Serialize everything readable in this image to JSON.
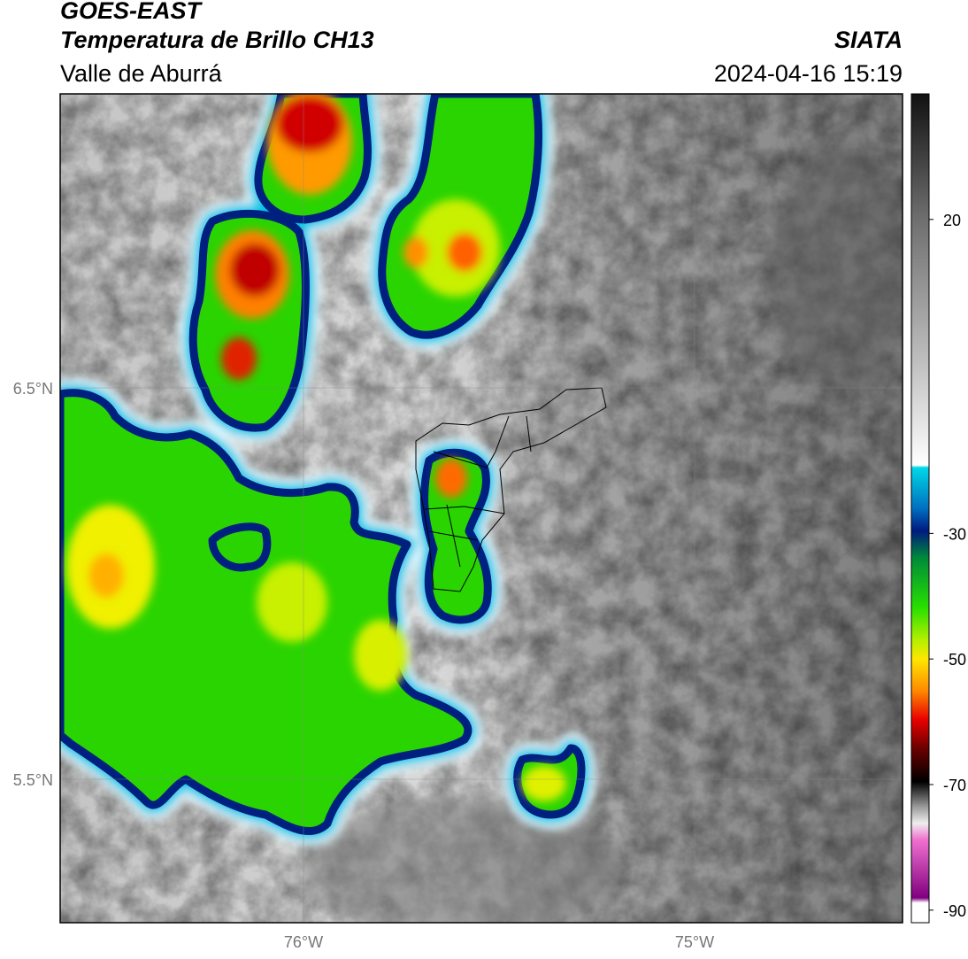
{
  "header": {
    "satellite": "GOES-EAST",
    "product": "Temperatura de Brillo CH13",
    "organization": "SIATA",
    "region": "Valle de Aburrá",
    "datetime": "2024-04-16 15:19"
  },
  "map": {
    "lat_labels": [
      "6.5°N",
      "5.5°N"
    ],
    "lon_labels": [
      "76°W",
      "75°W"
    ]
  },
  "colorbar": {
    "lim": [
      -92,
      40
    ],
    "ticks": [
      20,
      -30,
      -50,
      -70,
      -90
    ]
  }
}
